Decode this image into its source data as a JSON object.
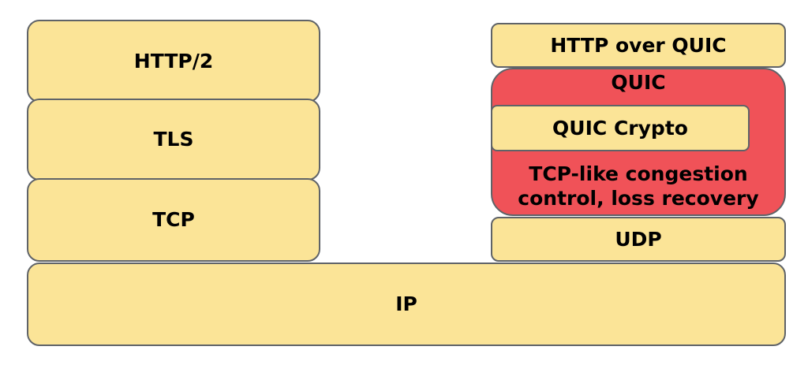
{
  "diagram": {
    "left_stack": {
      "http2": "HTTP/2",
      "tls": "TLS",
      "tcp": "TCP"
    },
    "right_stack": {
      "http_over_quic": "HTTP over QUIC",
      "quic": "QUIC",
      "quic_crypto": "QUIC Crypto",
      "quic_note_line1": "TCP-like congestion",
      "quic_note_line2": "control, loss recovery",
      "udp": "UDP"
    },
    "ip": "IP",
    "colors": {
      "layer_fill": "#fbe497",
      "quic_fill": "#f05258",
      "border": "#5f6368"
    }
  }
}
